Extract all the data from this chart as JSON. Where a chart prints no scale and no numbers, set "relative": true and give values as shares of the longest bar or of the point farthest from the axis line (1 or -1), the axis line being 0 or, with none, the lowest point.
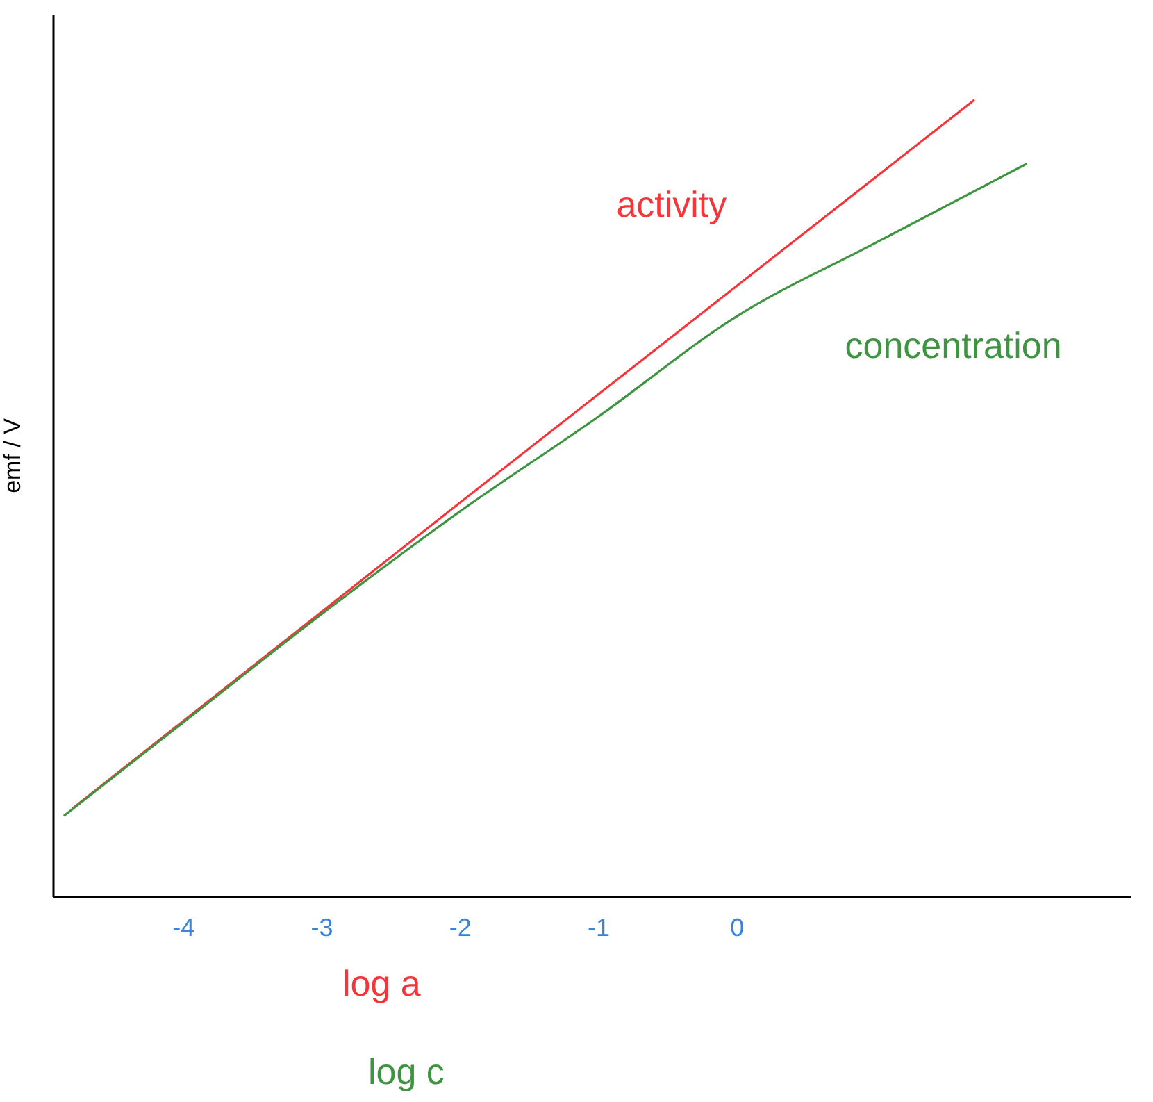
{
  "chart_data": {
    "type": "line",
    "relative": true,
    "xlabel": "log a",
    "ylabel": "emf / V",
    "xlim": [
      -4.94,
      2.85
    ],
    "xticks": [
      -4,
      -3,
      -2,
      -1,
      0
    ],
    "grid": false,
    "marker": "none",
    "line_style": "solid",
    "series": [
      {
        "name": "activity",
        "color": "#f5353a",
        "x": [
          -4.8,
          -2,
          1.72
        ],
        "values": [
          0.11,
          0.494,
          1.0
        ]
      },
      {
        "name": "concentration",
        "color": "#3e9440",
        "x": [
          -4.86,
          -4,
          -3,
          -2,
          -1,
          0,
          1,
          2.1
        ],
        "values": [
          0.101,
          0.218,
          0.354,
          0.483,
          0.602,
          0.728,
          0.82,
          0.92
        ]
      }
    ],
    "annotations": [
      "log c"
    ]
  }
}
